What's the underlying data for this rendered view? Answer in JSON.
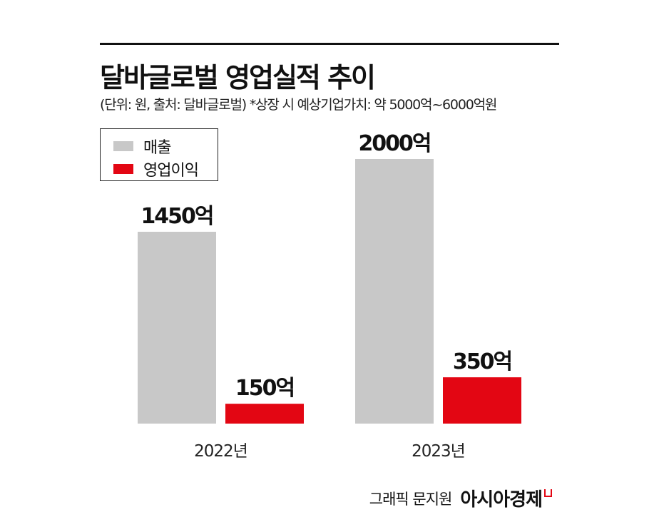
{
  "chart_data": {
    "type": "bar",
    "title": "달바글로벌 영업실적 추이",
    "subtitle": "(단위: 원, 출처: 달바글로벌)  *상장 시 예상기업가치: 약 5000억~6000억원",
    "categories": [
      "2022년",
      "2023년"
    ],
    "series": [
      {
        "name": "매출",
        "color": "#c8c8c8",
        "values": [
          1450,
          2000
        ],
        "labels": [
          "1450억",
          "2000억"
        ]
      },
      {
        "name": "영업이익",
        "color": "#e30613",
        "values": [
          150,
          350
        ],
        "labels": [
          "150억",
          "350억"
        ]
      }
    ],
    "unit": "억",
    "ylim": [
      0,
      2000
    ],
    "grid": false,
    "legend_position": "top-left"
  },
  "credit": {
    "text": "그래픽 문지원",
    "brand": "아시아경제"
  }
}
